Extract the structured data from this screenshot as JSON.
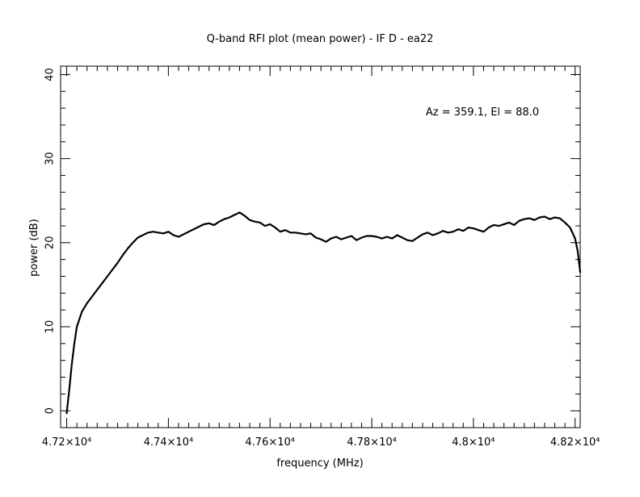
{
  "chart_data": {
    "type": "line",
    "title": "Q-band RFI plot (mean power) - IF D - ea22",
    "xlabel": "frequency (MHz)",
    "ylabel": "power (dB)",
    "annotation": "Az = 359.1, El = 88.0",
    "xlim": [
      47188,
      48210
    ],
    "ylim": [
      -2,
      41
    ],
    "x_ticks": [
      {
        "value": 47200,
        "label": "4.72×10⁴"
      },
      {
        "value": 47400,
        "label": "4.74×10⁴"
      },
      {
        "value": 47600,
        "label": "4.76×10⁴"
      },
      {
        "value": 47800,
        "label": "4.78×10⁴"
      },
      {
        "value": 48000,
        "label": "4.8×10⁴"
      },
      {
        "value": 48200,
        "label": "4.82×10⁴"
      }
    ],
    "y_ticks": [
      {
        "value": 0,
        "label": "0"
      },
      {
        "value": 10,
        "label": "10"
      },
      {
        "value": 20,
        "label": "20"
      },
      {
        "value": 30,
        "label": "30"
      },
      {
        "value": 40,
        "label": "40"
      }
    ],
    "grid": false,
    "line_color": "#000000",
    "series": [
      {
        "x": [
          47200,
          47205,
          47210,
          47215,
          47220,
          47230,
          47240,
          47250,
          47260,
          47270,
          47280,
          47290,
          47300,
          47310,
          47320,
          47330,
          47340,
          47350,
          47360,
          47370,
          47380,
          47390,
          47400,
          47410,
          47420,
          47430,
          47440,
          47450,
          47460,
          47470,
          47480,
          47490,
          47500,
          47510,
          47520,
          47530,
          47540,
          47550,
          47560,
          47570,
          47580,
          47590,
          47600,
          47610,
          47620,
          47630,
          47640,
          47650,
          47660,
          47670,
          47680,
          47690,
          47700,
          47710,
          47720,
          47730,
          47740,
          47750,
          47760,
          47770,
          47780,
          47790,
          47800,
          47810,
          47820,
          47830,
          47840,
          47850,
          47860,
          47870,
          47880,
          47890,
          47900,
          47910,
          47920,
          47930,
          47940,
          47950,
          47960,
          47970,
          47980,
          47990,
          48000,
          48010,
          48020,
          48030,
          48040,
          48050,
          48060,
          48070,
          48080,
          48090,
          48100,
          48110,
          48120,
          48130,
          48140,
          48150,
          48160,
          48170,
          48180,
          48190,
          48200,
          48205,
          48210
        ],
        "y": [
          -0.3,
          2.5,
          5.5,
          8.0,
          10.0,
          11.8,
          12.8,
          13.6,
          14.4,
          15.2,
          16.0,
          16.8,
          17.6,
          18.5,
          19.3,
          20.0,
          20.6,
          20.9,
          21.2,
          21.3,
          21.2,
          21.1,
          21.3,
          20.9,
          20.7,
          21.0,
          21.3,
          21.6,
          21.9,
          22.2,
          22.3,
          22.1,
          22.5,
          22.8,
          23.0,
          23.3,
          23.6,
          23.2,
          22.7,
          22.5,
          22.4,
          22.0,
          22.2,
          21.8,
          21.3,
          21.5,
          21.2,
          21.2,
          21.1,
          21.0,
          21.1,
          20.6,
          20.4,
          20.1,
          20.5,
          20.7,
          20.4,
          20.6,
          20.8,
          20.3,
          20.6,
          20.8,
          20.8,
          20.7,
          20.5,
          20.7,
          20.5,
          20.9,
          20.6,
          20.3,
          20.2,
          20.6,
          21.0,
          21.2,
          20.9,
          21.1,
          21.4,
          21.2,
          21.3,
          21.6,
          21.4,
          21.8,
          21.7,
          21.5,
          21.3,
          21.8,
          22.1,
          22.0,
          22.2,
          22.4,
          22.1,
          22.6,
          22.8,
          22.9,
          22.7,
          23.0,
          23.1,
          22.8,
          23.0,
          22.9,
          22.4,
          21.8,
          20.5,
          19.0,
          16.5
        ]
      }
    ]
  }
}
